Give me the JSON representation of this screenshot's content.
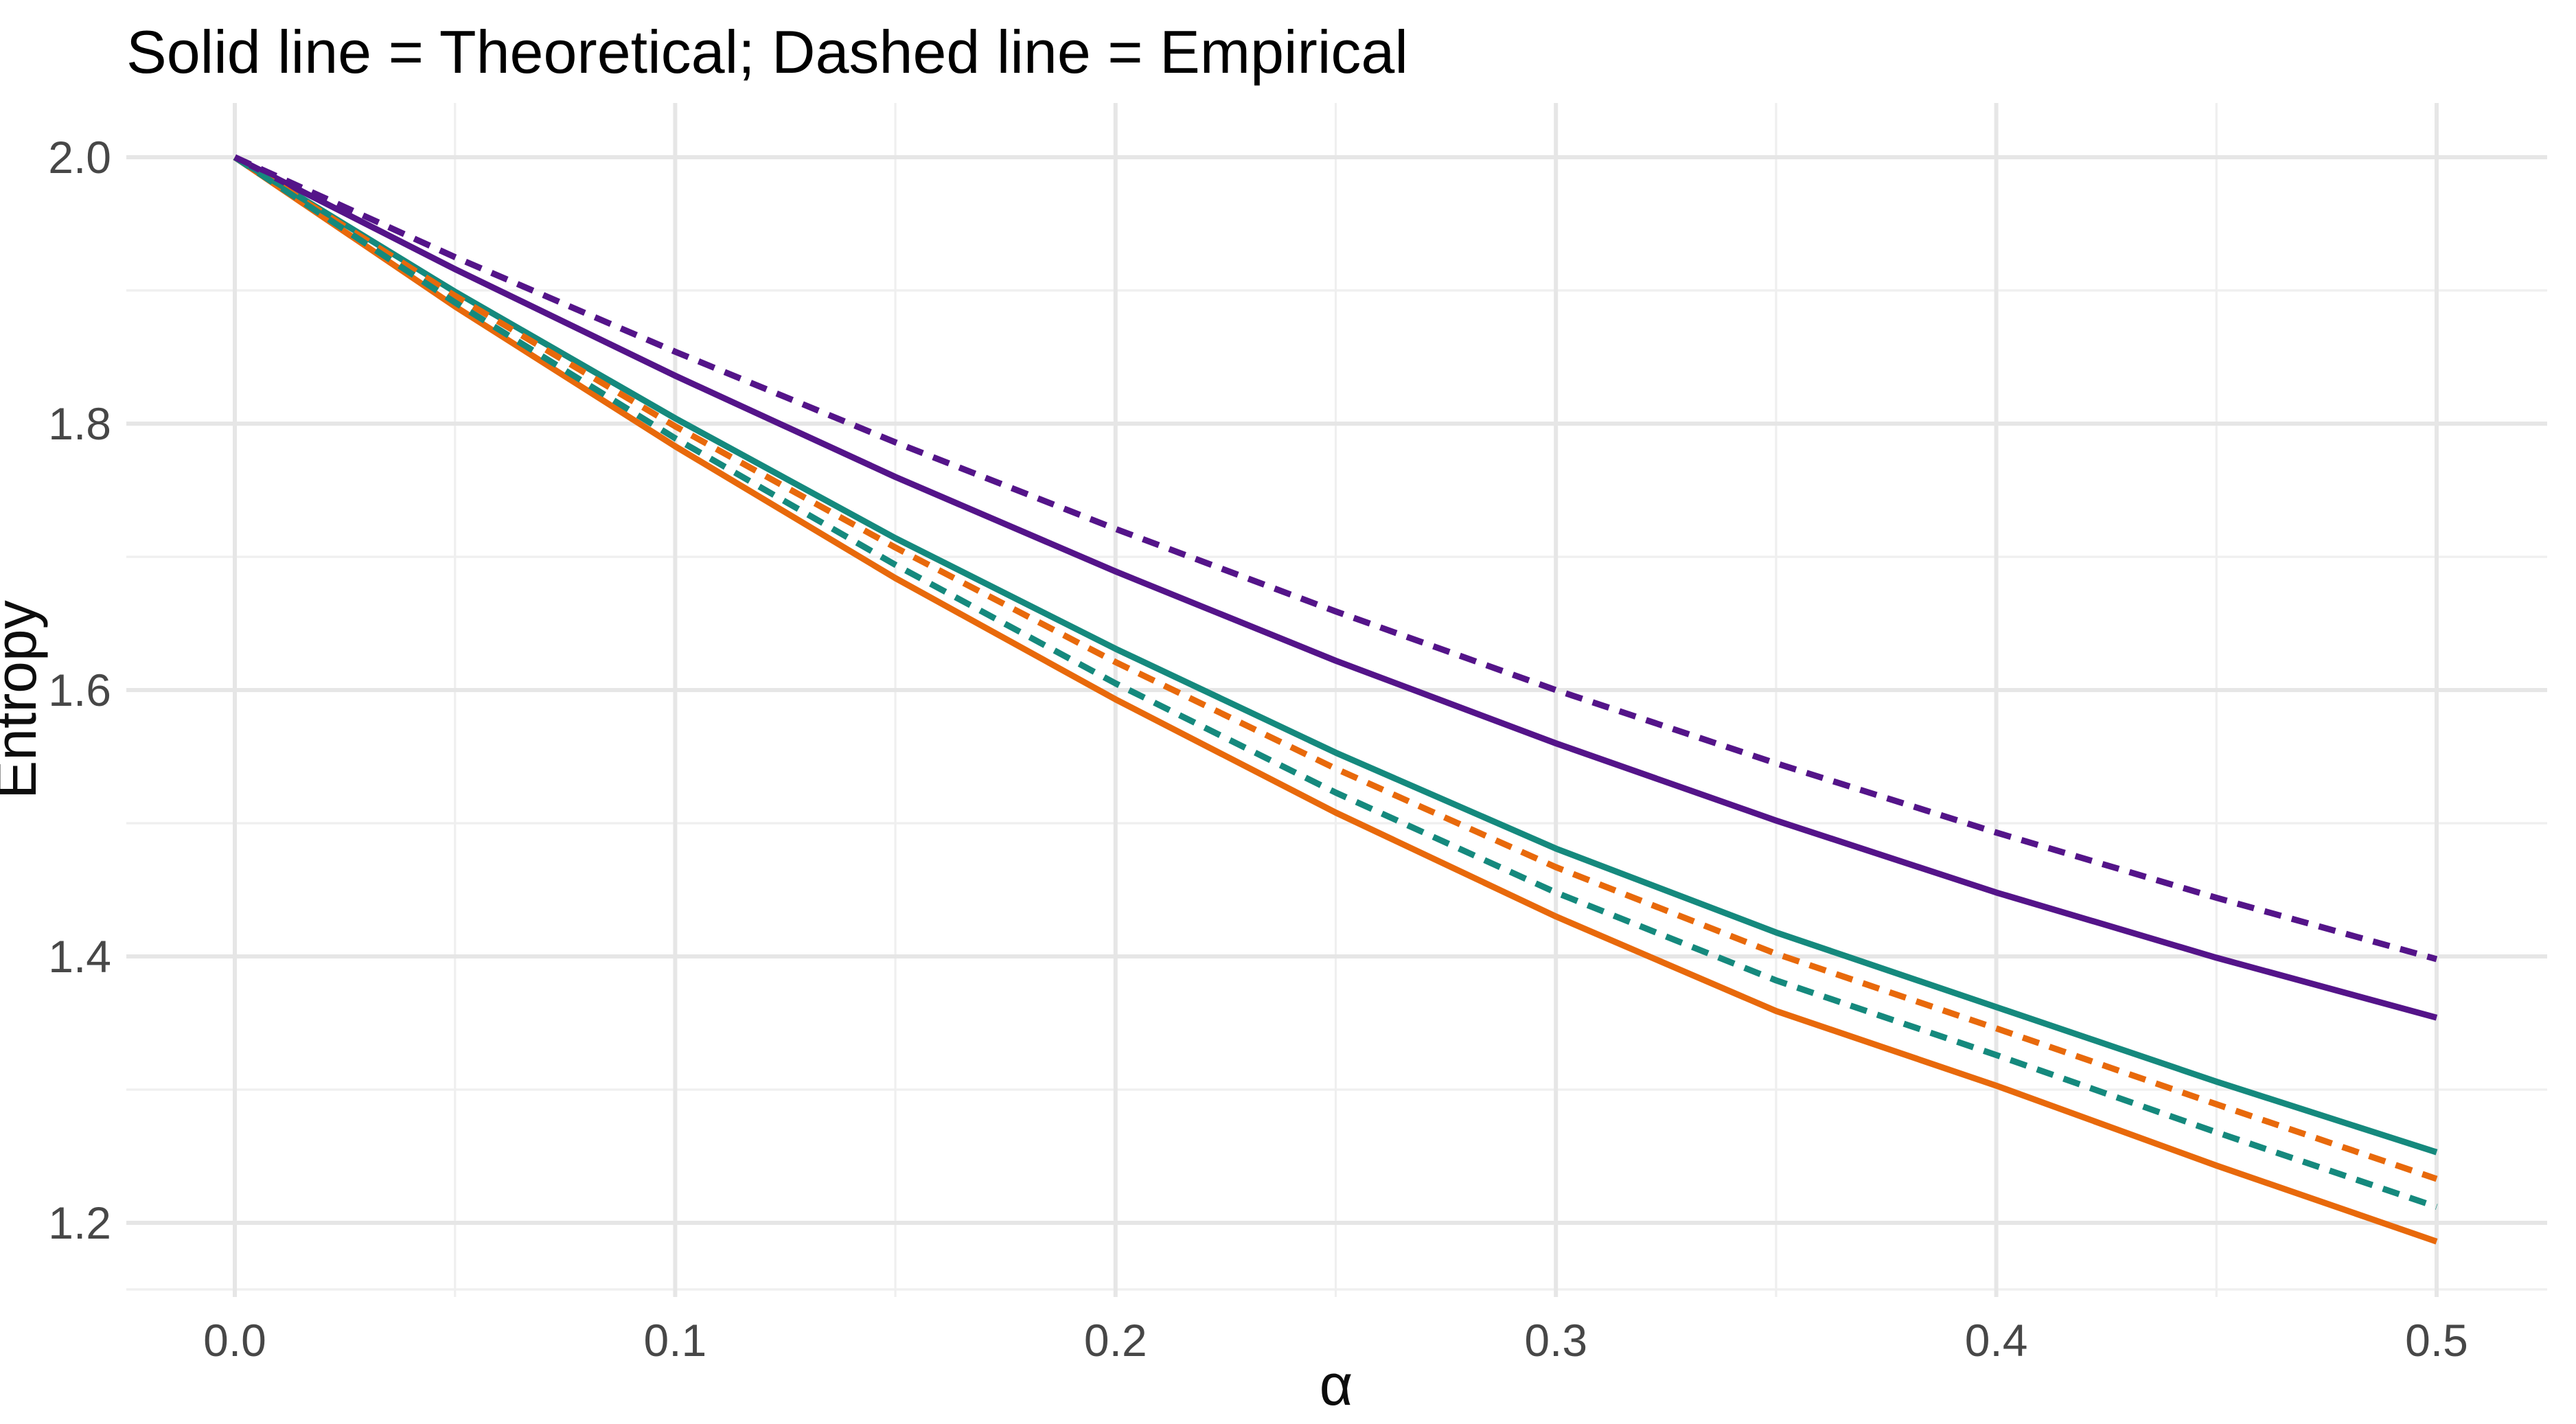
{
  "chart_data": {
    "type": "line",
    "title": "Solid line = Theoretical; Dashed line = Empirical",
    "xlabel": "α",
    "ylabel": "Entropy",
    "xlim": [
      -0.025,
      0.525
    ],
    "ylim": [
      1.144,
      2.041
    ],
    "grid": "on",
    "legend_position": "none",
    "x_ticks": {
      "values": [
        0.0,
        0.1,
        0.2,
        0.3,
        0.4,
        0.5
      ],
      "labels": [
        "0.0",
        "0.1",
        "0.2",
        "0.3",
        "0.4",
        "0.5"
      ]
    },
    "y_ticks": {
      "values": [
        2.0,
        1.8,
        1.6,
        1.4,
        1.2
      ],
      "labels": [
        "2.0",
        "1.8",
        "1.6",
        "1.4",
        "1.2"
      ]
    },
    "x_minor_ticks": [
      0.05,
      0.15,
      0.25,
      0.35,
      0.45
    ],
    "y_minor_ticks": [
      1.9,
      1.7,
      1.5,
      1.3,
      1.15
    ],
    "x": [
      0.0,
      0.05,
      0.1,
      0.15,
      0.2,
      0.25,
      0.3,
      0.35,
      0.4,
      0.45,
      0.5
    ],
    "series": [
      {
        "name": "orange-theoretical",
        "line_style": "solid",
        "color": "#E8690B",
        "values": [
          2.0,
          1.888,
          1.783,
          1.684,
          1.593,
          1.508,
          1.43,
          1.359,
          1.303,
          1.243,
          1.186
        ]
      },
      {
        "name": "teal-theoretical",
        "line_style": "solid",
        "color": "#15897D",
        "values": [
          2.0,
          1.899,
          1.804,
          1.714,
          1.631,
          1.553,
          1.481,
          1.418,
          1.362,
          1.306,
          1.253
        ]
      },
      {
        "name": "purple-theoretical",
        "line_style": "solid",
        "color": "#541489",
        "values": [
          2.0,
          1.916,
          1.836,
          1.76,
          1.689,
          1.622,
          1.56,
          1.502,
          1.448,
          1.399,
          1.354
        ]
      },
      {
        "name": "orange-empirical",
        "line_style": "dashed",
        "color": "#E8690B",
        "values": [
          2.0,
          1.896,
          1.798,
          1.707,
          1.621,
          1.541,
          1.467,
          1.402,
          1.346,
          1.289,
          1.233
        ]
      },
      {
        "name": "teal-empirical",
        "line_style": "dashed",
        "color": "#15897D",
        "values": [
          2.0,
          1.891,
          1.789,
          1.694,
          1.605,
          1.523,
          1.448,
          1.382,
          1.326,
          1.268,
          1.212
        ]
      },
      {
        "name": "purple-empirical",
        "line_style": "dashed",
        "color": "#541489",
        "values": [
          2.0,
          1.925,
          1.854,
          1.786,
          1.721,
          1.659,
          1.6,
          1.545,
          1.493,
          1.444,
          1.398
        ]
      }
    ]
  }
}
